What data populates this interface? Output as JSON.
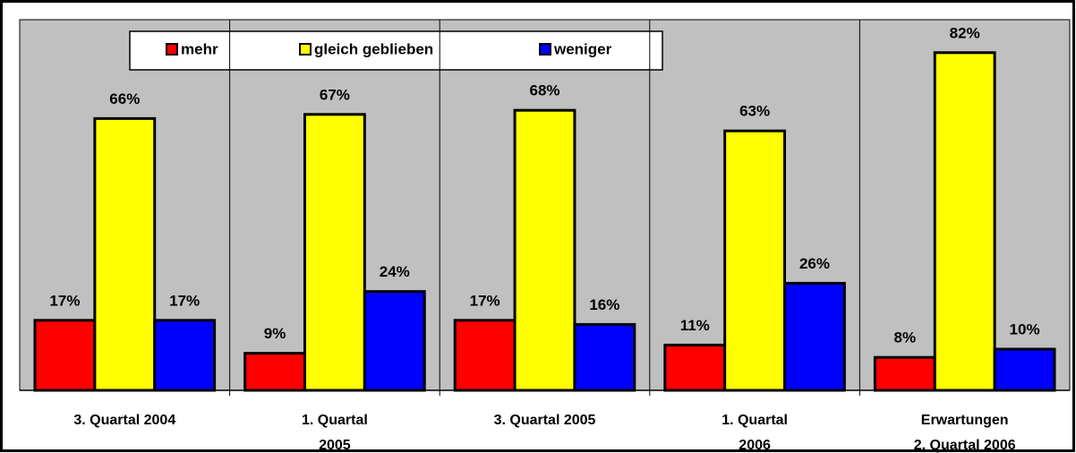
{
  "chart_data": {
    "type": "bar",
    "categories": [
      "3. Quartal 2004",
      "1. Quartal\n2005",
      "3. Quartal 2005",
      "1. Quartal\n2006",
      "Erwartungen\n2. Quartal 2006"
    ],
    "series": [
      {
        "name": "mehr",
        "color": "#ff0000",
        "values": [
          17,
          9,
          17,
          11,
          8
        ],
        "value_labels": [
          "17%",
          "9%",
          "17%",
          "11%",
          "8%"
        ]
      },
      {
        "name": "gleich geblieben",
        "color": "#ffff00",
        "values": [
          66,
          67,
          68,
          63,
          82
        ],
        "value_labels": [
          "66%",
          "67%",
          "68%",
          "63%",
          "82%"
        ]
      },
      {
        "name": "weniger",
        "color": "#0000ff",
        "values": [
          17,
          24,
          16,
          26,
          10
        ],
        "value_labels": [
          "17%",
          "24%",
          "16%",
          "26%",
          "10%"
        ]
      }
    ],
    "ylim": [
      0,
      90
    ],
    "grid": false
  }
}
